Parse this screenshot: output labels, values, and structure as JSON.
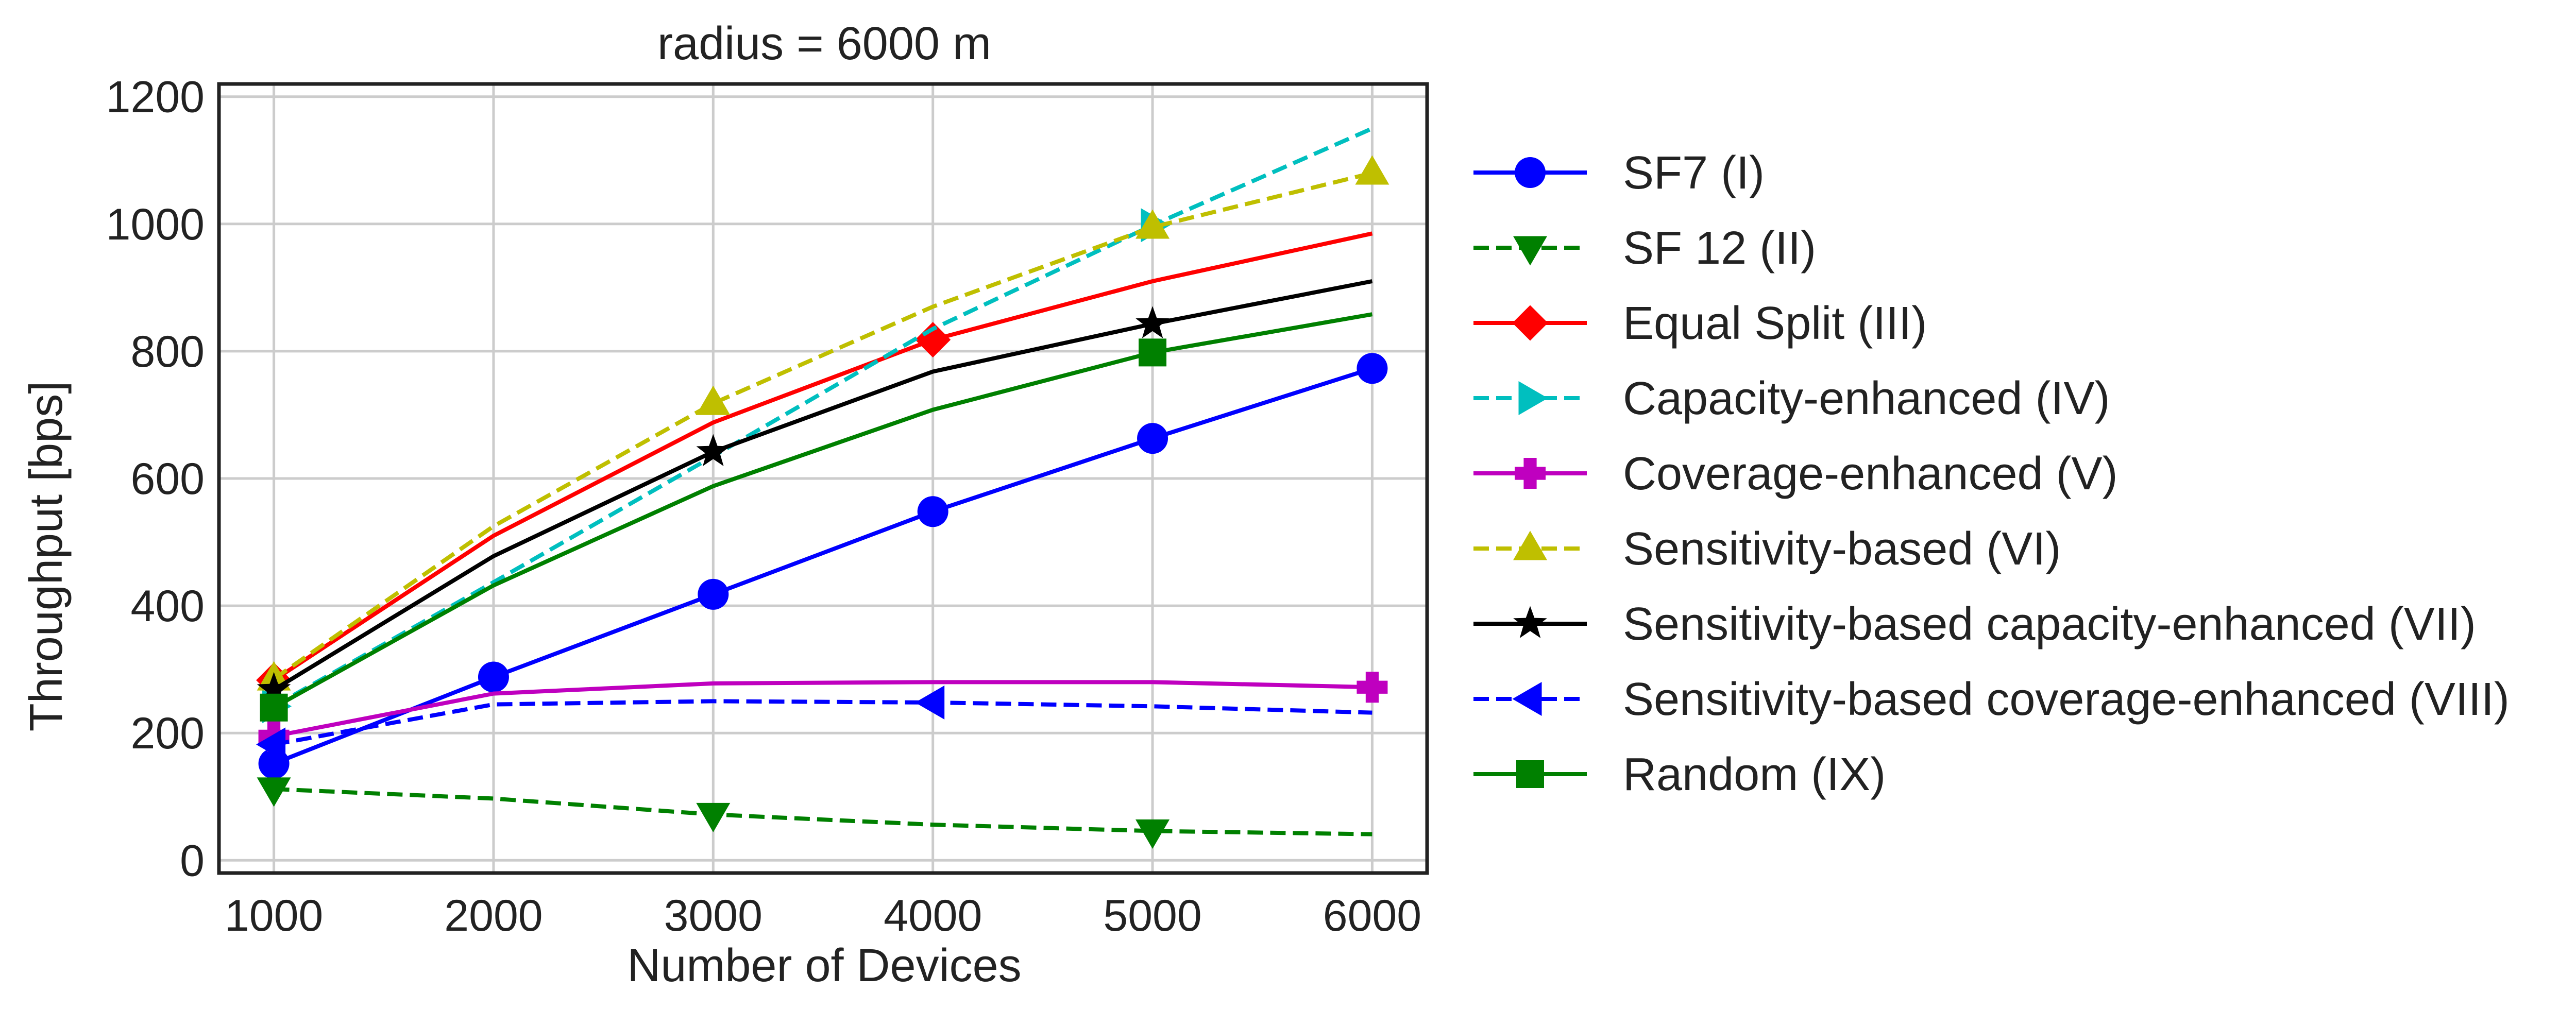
{
  "chart_data": {
    "type": "line",
    "title": "radius = 6000 m",
    "xlabel": "Number of Devices",
    "ylabel": "Throughput [bps]",
    "x": [
      1000,
      2000,
      3000,
      4000,
      5000,
      6000
    ],
    "xlim": [
      750,
      6250
    ],
    "ylim": [
      -20,
      1220
    ],
    "xticks": [
      "1000",
      "2000",
      "3000",
      "4000",
      "5000",
      "6000"
    ],
    "yticks": [
      "0",
      "200",
      "400",
      "600",
      "800",
      "1000",
      "1200"
    ],
    "grid": true,
    "legend_position": "outside-right",
    "series": [
      {
        "name": "SF7 (I)",
        "color": "#0000ff",
        "dash": "solid",
        "marker": "circle",
        "marker_at": [
          0,
          1,
          2,
          3,
          4,
          5
        ],
        "values": [
          152,
          288,
          418,
          548,
          663,
          773
        ]
      },
      {
        "name": "SF 12 (II)",
        "color": "#008000",
        "dash": "dashed",
        "marker": "triangle-down",
        "marker_at": [
          0,
          2,
          4
        ],
        "values": [
          112,
          97,
          72,
          56,
          46,
          41
        ]
      },
      {
        "name": "Equal Split (III)",
        "color": "#ff0000",
        "dash": "solid",
        "marker": "diamond",
        "marker_at": [
          0,
          3
        ],
        "values": [
          283,
          510,
          688,
          818,
          910,
          985
        ]
      },
      {
        "name": "Capacity-enhanced (IV)",
        "color": "#00bfbf",
        "dash": "dashed",
        "marker": "triangle-right",
        "marker_at": [
          0,
          4
        ],
        "values": [
          242,
          437,
          635,
          835,
          998,
          1150
        ]
      },
      {
        "name": "Coverage-enhanced (V)",
        "color": "#bf00bf",
        "dash": "solid",
        "marker": "plus",
        "marker_at": [
          0,
          5
        ],
        "values": [
          195,
          262,
          278,
          280,
          280,
          272
        ]
      },
      {
        "name": "Sensitivity-based (VI)",
        "color": "#bfbf00",
        "dash": "dashed",
        "marker": "triangle-up",
        "marker_at": [
          0,
          2,
          4,
          5
        ],
        "values": [
          285,
          525,
          718,
          870,
          995,
          1080
        ]
      },
      {
        "name": "Sensitivity-based capacity-enhanced (VII)",
        "color": "#000000",
        "dash": "solid",
        "marker": "star",
        "marker_at": [
          0,
          2,
          4
        ],
        "values": [
          268,
          478,
          642,
          768,
          843,
          910
        ]
      },
      {
        "name": "Sensitivity-based coverage-enhanced (VIII)",
        "color": "#0000ff",
        "dash": "dashed",
        "marker": "triangle-left",
        "marker_at": [
          0,
          3
        ],
        "values": [
          182,
          245,
          250,
          248,
          242,
          232
        ]
      },
      {
        "name": "Random (IX)",
        "color": "#008000",
        "dash": "solid",
        "marker": "square",
        "marker_at": [
          0,
          4
        ],
        "values": [
          240,
          432,
          588,
          708,
          798,
          858
        ]
      }
    ]
  }
}
